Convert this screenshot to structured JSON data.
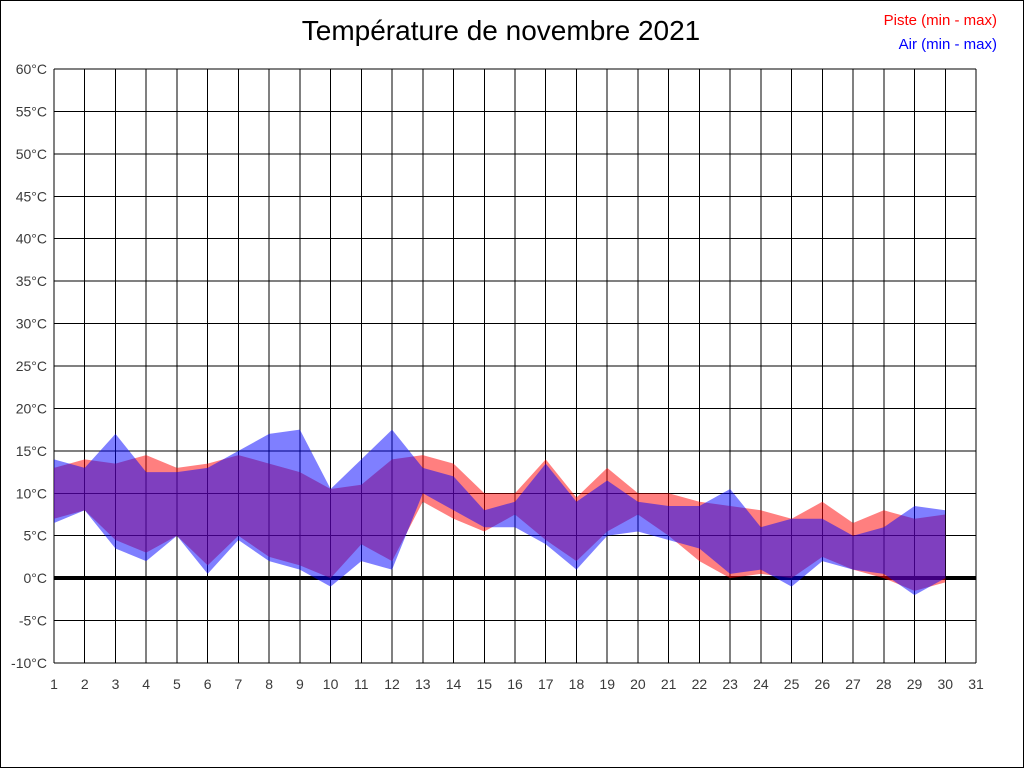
{
  "title": "Température de novembre 2021",
  "legend": [
    {
      "label": "Piste (min - max)",
      "color": "#ff0000"
    },
    {
      "label": "Air (min - max)",
      "color": "#0000ff"
    }
  ],
  "chart_data": {
    "type": "area",
    "title": "Température de novembre 2021",
    "x": [
      1,
      2,
      3,
      4,
      5,
      6,
      7,
      8,
      9,
      10,
      11,
      12,
      13,
      14,
      15,
      16,
      17,
      18,
      19,
      20,
      21,
      22,
      23,
      24,
      25,
      26,
      27,
      28,
      29,
      30
    ],
    "x_ticks": [
      1,
      2,
      3,
      4,
      5,
      6,
      7,
      8,
      9,
      10,
      11,
      12,
      13,
      14,
      15,
      16,
      17,
      18,
      19,
      20,
      21,
      22,
      23,
      24,
      25,
      26,
      27,
      28,
      29,
      30,
      31
    ],
    "y_ticks": [
      60,
      55,
      50,
      45,
      40,
      35,
      30,
      25,
      20,
      15,
      10,
      5,
      0,
      -5,
      -10
    ],
    "y_tick_suffix": "°C",
    "xlim": [
      1,
      31
    ],
    "ylim": [
      -10,
      60
    ],
    "grid": true,
    "zero_line": true,
    "series": [
      {
        "name": "Piste (min - max)",
        "fill": "rgba(255,0,0,0.5)",
        "min": [
          7,
          8,
          4.5,
          3,
          5,
          1.5,
          5,
          2.5,
          1.5,
          0,
          4,
          2,
          9,
          7,
          5.5,
          7.5,
          4.5,
          2,
          5.5,
          7.5,
          5,
          2,
          0,
          0.5,
          0,
          2.5,
          1,
          0,
          -1.5,
          -0.5
        ],
        "max": [
          13,
          14,
          13.5,
          14.5,
          13,
          13.5,
          14.5,
          13.5,
          12.5,
          10.5,
          11,
          14,
          14.5,
          13.5,
          10,
          10,
          14,
          9.5,
          13,
          10,
          10,
          9,
          8.5,
          8,
          7,
          9,
          6.5,
          8,
          7,
          7.5
        ]
      },
      {
        "name": "Air (min - max)",
        "fill": "rgba(0,0,255,0.5)",
        "min": [
          6.5,
          8,
          3.5,
          2,
          5,
          0.5,
          4.5,
          2,
          1,
          -1,
          2,
          1,
          10,
          8,
          6,
          6,
          4,
          1,
          5,
          5.5,
          4.5,
          3.5,
          0.5,
          1,
          -1,
          2,
          1,
          0.5,
          -2,
          0
        ],
        "max": [
          14,
          13,
          17,
          12.5,
          12.5,
          13,
          15,
          17,
          17.5,
          10.5,
          14,
          17.5,
          13,
          12,
          8,
          9,
          13.5,
          9,
          11.5,
          9,
          8.5,
          8.5,
          10.5,
          6,
          7,
          7,
          5,
          6,
          8.5,
          8
        ]
      }
    ]
  }
}
